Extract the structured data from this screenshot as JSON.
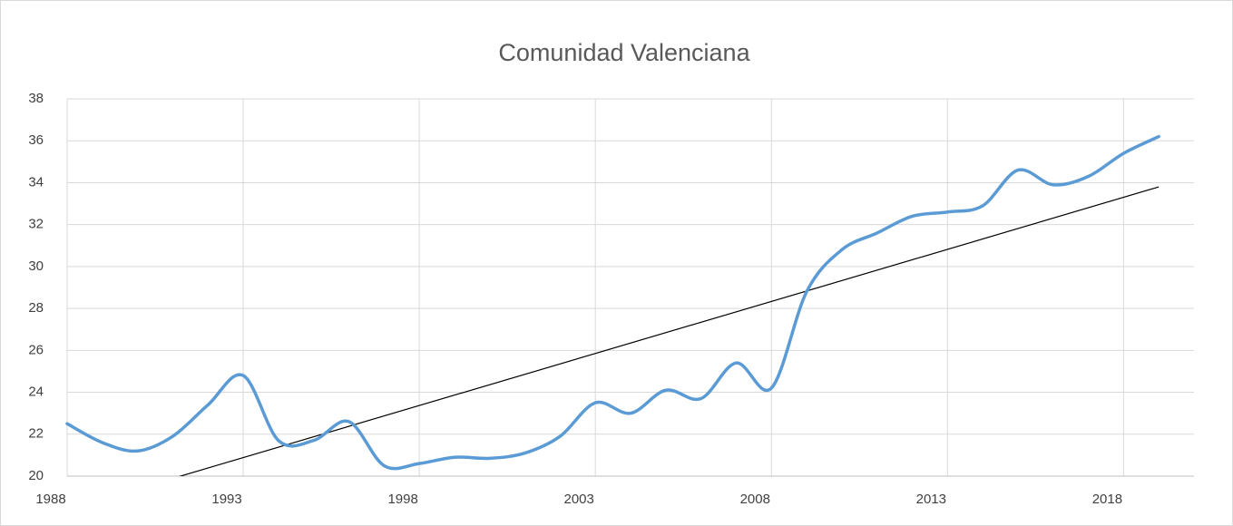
{
  "chart_data": {
    "type": "line",
    "title": "Comunidad Valenciana",
    "x": [
      1988,
      1989,
      1990,
      1991,
      1992,
      1993,
      1994,
      1995,
      1996,
      1997,
      1998,
      1999,
      2000,
      2001,
      2002,
      2003,
      2004,
      2005,
      2006,
      2007,
      2008,
      2009,
      2010,
      2011,
      2012,
      2013,
      2014,
      2015,
      2016,
      2017,
      2018,
      2019
    ],
    "series": [
      {
        "color": "#5b9bd5",
        "values": [
          22.5,
          21.6,
          21.2,
          21.9,
          23.4,
          24.8,
          21.7,
          21.7,
          22.6,
          20.5,
          20.6,
          20.9,
          20.85,
          21.1,
          21.9,
          23.5,
          23.0,
          24.1,
          23.7,
          25.4,
          24.2,
          28.8,
          30.8,
          31.6,
          32.4,
          32.6,
          32.9,
          34.6,
          33.9,
          34.3,
          35.4,
          36.2
        ]
      }
    ],
    "trendline": {
      "color": "#000000",
      "x": [
        1988,
        2019
      ],
      "values": [
        18.4,
        33.8
      ]
    },
    "xlim": [
      1988,
      2020
    ],
    "xticks": [
      1988,
      1993,
      1998,
      2003,
      2008,
      2013,
      2018
    ],
    "ylim": [
      20,
      38
    ],
    "yticks": [
      20,
      22,
      24,
      26,
      28,
      30,
      32,
      34,
      36,
      38
    ],
    "grid": true
  }
}
